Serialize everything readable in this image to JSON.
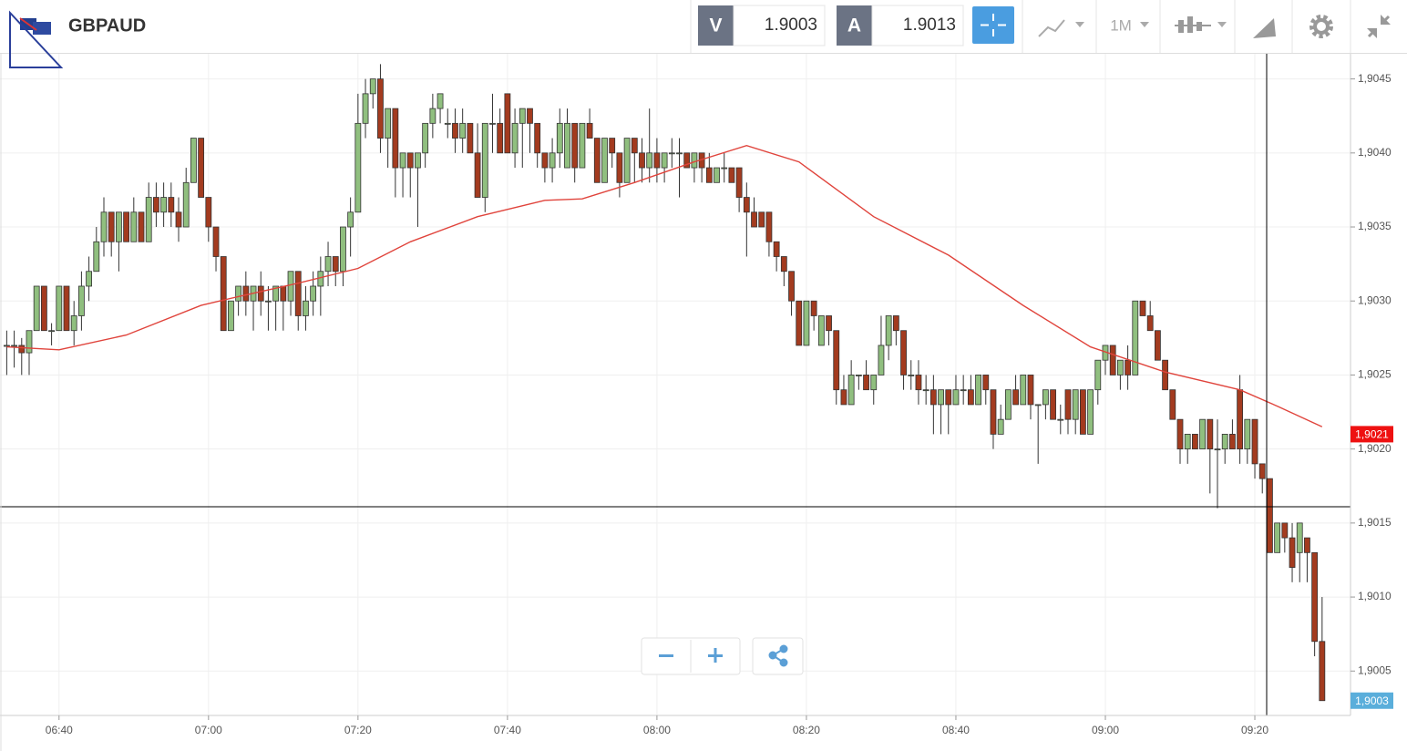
{
  "header": {
    "symbol": "GBPAUD",
    "bid_label": "V",
    "bid": "1.9003",
    "ask_label": "A",
    "ask": "1.9013",
    "timeframe": "1M"
  },
  "chart_data": {
    "type": "candlestick",
    "grid": true,
    "xlim": [
      392.1,
      572.8
    ],
    "ylim": [
      1.9002,
      1.90467
    ],
    "xticks": [
      {
        "value": 400,
        "label": "06:40"
      },
      {
        "value": 420,
        "label": "07:00"
      },
      {
        "value": 440,
        "label": "07:20"
      },
      {
        "value": 460,
        "label": "07:40"
      },
      {
        "value": 480,
        "label": "08:00"
      },
      {
        "value": 500,
        "label": "08:20"
      },
      {
        "value": 520,
        "label": "08:40"
      },
      {
        "value": 540,
        "label": "09:00"
      },
      {
        "value": 560,
        "label": "09:20"
      }
    ],
    "yticks": [
      {
        "value": 1.9005,
        "label": "1,9005"
      },
      {
        "value": 1.901,
        "label": "1,9010"
      },
      {
        "value": 1.9015,
        "label": "1,9015"
      },
      {
        "value": 1.902,
        "label": "1,9020"
      },
      {
        "value": 1.9025,
        "label": "1,9025"
      },
      {
        "value": 1.903,
        "label": "1,9030"
      },
      {
        "value": 1.9035,
        "label": "1,9035"
      },
      {
        "value": 1.904,
        "label": "1,9040"
      },
      {
        "value": 1.9045,
        "label": "1,9045"
      }
    ],
    "up_color": "#90bf7f",
    "down_color": "#a33b1f",
    "wick_color": "#333333",
    "x": [
      393,
      394,
      395,
      396,
      397,
      398,
      399,
      400,
      401,
      402,
      403,
      404,
      405,
      406,
      407,
      408,
      409,
      410,
      411,
      412,
      413,
      414,
      415,
      416,
      417,
      418,
      419,
      420,
      421,
      422,
      423,
      424,
      425,
      426,
      427,
      428,
      429,
      430,
      431,
      432,
      433,
      434,
      435,
      436,
      437,
      438,
      439,
      440,
      441,
      442,
      443,
      444,
      445,
      446,
      447,
      448,
      449,
      450,
      451,
      452,
      453,
      454,
      455,
      456,
      457,
      458,
      459,
      460,
      461,
      462,
      463,
      464,
      465,
      466,
      467,
      468,
      469,
      470,
      471,
      472,
      473,
      474,
      475,
      476,
      477,
      478,
      479,
      480,
      481,
      482,
      483,
      484,
      485,
      486,
      487,
      488,
      489,
      490,
      491,
      492,
      493,
      494,
      495,
      496,
      497,
      498,
      499,
      500,
      501,
      502,
      503,
      504,
      505,
      506,
      507,
      508,
      509,
      510,
      511,
      512,
      513,
      514,
      515,
      516,
      517,
      518,
      519,
      520,
      521,
      522,
      523,
      524,
      525,
      526,
      527,
      528,
      529,
      530,
      531,
      532,
      533,
      534,
      535,
      536,
      537,
      538,
      539,
      540,
      541,
      542,
      543,
      544,
      545,
      546,
      547,
      548,
      549,
      550,
      551,
      552,
      553,
      554,
      555,
      556,
      557,
      558,
      559,
      560,
      561,
      562,
      563,
      564,
      565,
      566,
      567,
      568,
      569
    ],
    "open": [
      1.9027,
      1.9027,
      1.9027,
      1.90265,
      1.9028,
      1.9031,
      1.9028,
      1.9028,
      1.9031,
      1.9028,
      1.9029,
      1.9031,
      1.9032,
      1.9034,
      1.9036,
      1.9034,
      1.9036,
      1.9034,
      1.9036,
      1.9034,
      1.9037,
      1.9036,
      1.9037,
      1.9036,
      1.9035,
      1.9038,
      1.9041,
      1.9037,
      1.9035,
      1.9033,
      1.9028,
      1.903,
      1.9031,
      1.903,
      1.9031,
      1.903,
      1.903,
      1.9031,
      1.903,
      1.9032,
      1.9029,
      1.903,
      1.9031,
      1.9032,
      1.9033,
      1.9032,
      1.9035,
      1.9036,
      1.9042,
      1.9044,
      1.9045,
      1.9041,
      1.9043,
      1.9039,
      1.904,
      1.9039,
      1.904,
      1.9042,
      1.9043,
      1.9042,
      1.9042,
      1.9041,
      1.9042,
      1.904,
      1.9037,
      1.9042,
      1.9042,
      1.9044,
      1.904,
      1.9042,
      1.9043,
      1.9042,
      1.904,
      1.9039,
      1.904,
      1.9039,
      1.9042,
      1.9039,
      1.9042,
      1.9041,
      1.9038,
      1.9041,
      1.904,
      1.9038,
      1.9041,
      1.904,
      1.9039,
      1.904,
      1.9039,
      1.904,
      1.904,
      1.904,
      1.9039,
      1.904,
      1.9039,
      1.9038,
      1.9039,
      1.9039,
      1.9039,
      1.9037,
      1.9036,
      1.9036,
      1.9036,
      1.9034,
      1.9033,
      1.9032,
      1.903,
      1.9027,
      1.903,
      1.9027,
      1.9029,
      1.9028,
      1.9024,
      1.9023,
      1.9025,
      1.9025,
      1.9024,
      1.9025,
      1.9027,
      1.9029,
      1.9028,
      1.9025,
      1.9025,
      1.9024,
      1.9024,
      1.9023,
      1.9024,
      1.9023,
      1.9024,
      1.9024,
      1.9023,
      1.9025,
      1.9024,
      1.9021,
      1.9022,
      1.9024,
      1.9023,
      1.9025,
      1.9023,
      1.9023,
      1.9024,
      1.9022,
      1.9024,
      1.9022,
      1.9024,
      1.9021,
      1.9024,
      1.9026,
      1.9027,
      1.9025,
      1.9026,
      1.9025,
      1.903,
      1.9029,
      1.9028,
      1.9026,
      1.9024,
      1.9022,
      1.902,
      1.9021,
      1.902,
      1.9022,
      1.902,
      1.902,
      1.9021,
      1.9024,
      1.902,
      1.9022,
      1.9019,
      1.9018,
      1.9013,
      1.9015,
      1.9014,
      1.9013,
      1.9014,
      1.9013,
      1.9007
    ],
    "high": [
      1.9028,
      1.9028,
      1.90275,
      1.9028,
      1.9031,
      1.9031,
      1.90285,
      1.9031,
      1.9031,
      1.903,
      1.9032,
      1.9033,
      1.9035,
      1.9037,
      1.9036,
      1.9036,
      1.9036,
      1.9037,
      1.9036,
      1.9038,
      1.9038,
      1.9038,
      1.9038,
      1.9037,
      1.9039,
      1.9041,
      1.9041,
      1.9037,
      1.9035,
      1.9033,
      1.903,
      1.9031,
      1.9032,
      1.9031,
      1.9032,
      1.9031,
      1.9031,
      1.9031,
      1.9032,
      1.9032,
      1.9031,
      1.9032,
      1.9033,
      1.9034,
      1.9033,
      1.9035,
      1.9037,
      1.9044,
      1.9045,
      1.9045,
      1.9046,
      1.9043,
      1.9043,
      1.904,
      1.904,
      1.904,
      1.9042,
      1.9044,
      1.9044,
      1.9043,
      1.9043,
      1.9043,
      1.9042,
      1.9042,
      1.9042,
      1.9044,
      1.9043,
      1.9044,
      1.9043,
      1.9043,
      1.9043,
      1.9042,
      1.904,
      1.9041,
      1.9043,
      1.9043,
      1.9042,
      1.9042,
      1.9043,
      1.9041,
      1.9041,
      1.9041,
      1.904,
      1.9041,
      1.9041,
      1.9041,
      1.9043,
      1.9041,
      1.904,
      1.9041,
      1.9041,
      1.904,
      1.904,
      1.904,
      1.904,
      1.9039,
      1.904,
      1.9039,
      1.9039,
      1.9038,
      1.9037,
      1.9036,
      1.9036,
      1.9034,
      1.9033,
      1.9032,
      1.903,
      1.903,
      1.903,
      1.9029,
      1.9029,
      1.9028,
      1.9025,
      1.9026,
      1.9025,
      1.9026,
      1.9025,
      1.9029,
      1.9029,
      1.9029,
      1.9028,
      1.9026,
      1.9026,
      1.9025,
      1.9025,
      1.9024,
      1.9024,
      1.9025,
      1.9025,
      1.9025,
      1.9025,
      1.9025,
      1.9024,
      1.9023,
      1.9024,
      1.9025,
      1.9025,
      1.9025,
      1.9023,
      1.9024,
      1.9024,
      1.9023,
      1.9024,
      1.9024,
      1.9024,
      1.9024,
      1.9026,
      1.9027,
      1.9027,
      1.9026,
      1.9027,
      1.903,
      1.903,
      1.903,
      1.9028,
      1.9026,
      1.9024,
      1.9022,
      1.9021,
      1.9021,
      1.9022,
      1.9022,
      1.9022,
      1.9021,
      1.9022,
      1.9025,
      1.9022,
      1.9022,
      1.9019,
      1.9018,
      1.9015,
      1.9015,
      1.9015,
      1.9015,
      1.9014,
      1.9013,
      1.901
    ],
    "low": [
      1.9025,
      1.90255,
      1.9025,
      1.9025,
      1.9028,
      1.9028,
      1.9027,
      1.9028,
      1.9028,
      1.9027,
      1.9028,
      1.903,
      1.9032,
      1.9033,
      1.9033,
      1.9032,
      1.9034,
      1.9034,
      1.9034,
      1.9034,
      1.9035,
      1.9035,
      1.9035,
      1.9034,
      1.9035,
      1.9038,
      1.9037,
      1.9034,
      1.9032,
      1.9028,
      1.9028,
      1.9029,
      1.9029,
      1.9028,
      1.9029,
      1.9028,
      1.9028,
      1.9028,
      1.9029,
      1.9028,
      1.9028,
      1.9029,
      1.9029,
      1.9031,
      1.9031,
      1.9031,
      1.9033,
      1.9036,
      1.9041,
      1.9043,
      1.904,
      1.9039,
      1.9037,
      1.9037,
      1.9037,
      1.9035,
      1.9039,
      1.9041,
      1.9042,
      1.9041,
      1.904,
      1.904,
      1.904,
      1.9037,
      1.9036,
      1.904,
      1.904,
      1.904,
      1.9039,
      1.9039,
      1.904,
      1.9039,
      1.9038,
      1.9038,
      1.9039,
      1.9039,
      1.9038,
      1.9039,
      1.9041,
      1.9038,
      1.9038,
      1.9039,
      1.9037,
      1.9038,
      1.9038,
      1.9038,
      1.9038,
      1.9038,
      1.9038,
      1.9039,
      1.9037,
      1.9039,
      1.9038,
      1.9038,
      1.9038,
      1.9038,
      1.9038,
      1.9038,
      1.9036,
      1.9033,
      1.9035,
      1.9035,
      1.9033,
      1.9032,
      1.9031,
      1.9029,
      1.9027,
      1.9027,
      1.9028,
      1.9027,
      1.9027,
      1.9023,
      1.9023,
      1.9023,
      1.9024,
      1.9024,
      1.9023,
      1.9025,
      1.9026,
      1.9027,
      1.9024,
      1.9024,
      1.9023,
      1.9023,
      1.9021,
      1.9021,
      1.9021,
      1.9023,
      1.9023,
      1.9023,
      1.9023,
      1.9023,
      1.902,
      1.9021,
      1.9022,
      1.9023,
      1.9023,
      1.9022,
      1.9019,
      1.9022,
      1.9022,
      1.9021,
      1.9021,
      1.9021,
      1.9021,
      1.9021,
      1.9023,
      1.9025,
      1.9025,
      1.9024,
      1.9024,
      1.9025,
      1.9029,
      1.9028,
      1.9026,
      1.9024,
      1.9022,
      1.9019,
      1.9019,
      1.902,
      1.902,
      1.9017,
      1.9016,
      1.9019,
      1.902,
      1.9019,
      1.9019,
      1.9018,
      1.9017,
      1.9013,
      1.9013,
      1.9013,
      1.9011,
      1.9011,
      1.9011,
      1.9006,
      1.9003
    ],
    "close": [
      1.9027,
      1.9027,
      1.90265,
      1.9028,
      1.9031,
      1.9028,
      1.9028,
      1.9031,
      1.9028,
      1.9029,
      1.9031,
      1.9032,
      1.9034,
      1.9036,
      1.9034,
      1.9036,
      1.9034,
      1.9036,
      1.9034,
      1.9037,
      1.9036,
      1.9037,
      1.9036,
      1.9035,
      1.9038,
      1.9041,
      1.9037,
      1.9035,
      1.9033,
      1.9028,
      1.903,
      1.9031,
      1.903,
      1.9031,
      1.903,
      1.903,
      1.9031,
      1.903,
      1.9032,
      1.9029,
      1.903,
      1.9031,
      1.9032,
      1.9033,
      1.9032,
      1.9035,
      1.9036,
      1.9042,
      1.9044,
      1.9045,
      1.9041,
      1.9043,
      1.9039,
      1.904,
      1.9039,
      1.904,
      1.9042,
      1.9043,
      1.9044,
      1.9042,
      1.9041,
      1.9042,
      1.904,
      1.9037,
      1.9042,
      1.9042,
      1.904,
      1.904,
      1.9042,
      1.9043,
      1.9042,
      1.904,
      1.9039,
      1.904,
      1.9042,
      1.9042,
      1.9039,
      1.9042,
      1.9041,
      1.9038,
      1.9041,
      1.904,
      1.9038,
      1.9041,
      1.904,
      1.9039,
      1.904,
      1.9039,
      1.904,
      1.904,
      1.904,
      1.9039,
      1.904,
      1.9039,
      1.9038,
      1.9039,
      1.9039,
      1.9038,
      1.9037,
      1.9036,
      1.9035,
      1.9035,
      1.9034,
      1.9033,
      1.9032,
      1.903,
      1.9027,
      1.903,
      1.9029,
      1.9029,
      1.9028,
      1.9024,
      1.9023,
      1.9025,
      1.9025,
      1.9024,
      1.9025,
      1.9027,
      1.9029,
      1.9028,
      1.9025,
      1.9025,
      1.9024,
      1.9024,
      1.9023,
      1.9024,
      1.9023,
      1.9024,
      1.9024,
      1.9023,
      1.9025,
      1.9024,
      1.9021,
      1.9022,
      1.9024,
      1.9023,
      1.9025,
      1.9023,
      1.9023,
      1.9024,
      1.9022,
      1.9022,
      1.9022,
      1.9024,
      1.9021,
      1.9024,
      1.9026,
      1.9027,
      1.9025,
      1.9026,
      1.9025,
      1.903,
      1.9029,
      1.9028,
      1.9026,
      1.9024,
      1.9022,
      1.902,
      1.9021,
      1.902,
      1.9022,
      1.902,
      1.902,
      1.9021,
      1.902,
      1.902,
      1.9022,
      1.9019,
      1.9018,
      1.9013,
      1.9015,
      1.9014,
      1.9012,
      1.9015,
      1.9013,
      1.9007,
      1.9003
    ],
    "ma": {
      "color": "#e0443c",
      "x": [
        393,
        400,
        409,
        419,
        424,
        432,
        440,
        447,
        456,
        465,
        470,
        477,
        485,
        492,
        499,
        509,
        519,
        529,
        538,
        548,
        558,
        563,
        569
      ],
      "values": [
        1.90269,
        1.90267,
        1.90277,
        1.90297,
        1.90303,
        1.90312,
        1.90322,
        1.9034,
        1.90357,
        1.90368,
        1.90369,
        1.9038,
        1.90394,
        1.90405,
        1.90394,
        1.90357,
        1.90331,
        1.90297,
        1.90269,
        1.90252,
        1.9024,
        1.90229,
        1.90215
      ]
    },
    "price_badges": [
      {
        "value": 1.9021,
        "label": "1,9021",
        "color": "#ee1111"
      },
      {
        "value": 1.9003,
        "label": "1,9003",
        "color": "#5aaedb"
      }
    ]
  }
}
